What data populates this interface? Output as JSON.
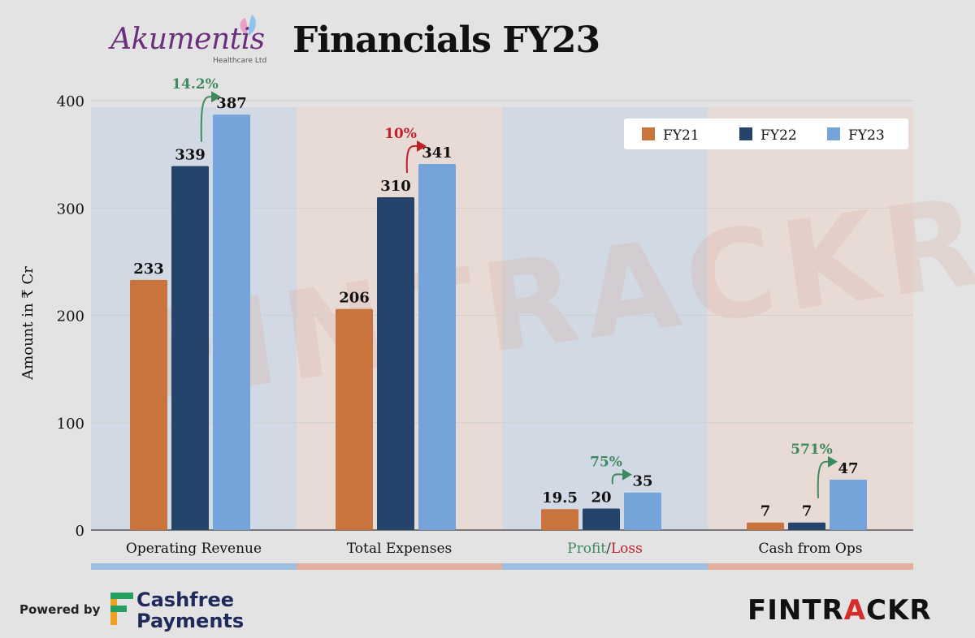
{
  "header": {
    "logo_text": "Akumentis",
    "logo_subtext": "Healthcare Ltd",
    "title": "Financials FY23"
  },
  "footer": {
    "powered_by": "Powered by",
    "sponsor_line1": "Cashfree",
    "sponsor_line2": "Payments",
    "brand_part1": "FINTR",
    "brand_part2": "A",
    "brand_part3": "CKR"
  },
  "watermark": "FINTRACKR",
  "colors": {
    "FY21": "#c8743c",
    "FY22": "#24446c",
    "FY23": "#74a4da",
    "growth_positive": "#3e8a5e",
    "growth_negative": "#c0202a",
    "band_blue": "#c3d4e6",
    "band_peach": "#ecd6cc"
  },
  "chart_data": {
    "type": "bar",
    "ylabel": "Amount in ₹ Cr",
    "ylim": [
      0,
      400
    ],
    "yticks": [
      0,
      100,
      200,
      300,
      400
    ],
    "legend_position": "top-right",
    "categories": [
      "Operating Revenue",
      "Total Expenses",
      "Profit/Loss",
      "Cash from Ops"
    ],
    "series": [
      {
        "name": "FY21",
        "values": [
          233,
          206,
          19.5,
          7
        ],
        "labels": [
          "233",
          "206",
          "19.5",
          "7"
        ]
      },
      {
        "name": "FY22",
        "values": [
          339,
          310,
          20,
          7
        ],
        "labels": [
          "339",
          "310",
          "20",
          "7"
        ]
      },
      {
        "name": "FY23",
        "values": [
          387,
          341,
          35,
          47
        ],
        "labels": [
          "387",
          "341",
          "35",
          "47"
        ]
      }
    ],
    "growth": [
      {
        "category": "Operating Revenue",
        "label": "14.2%",
        "direction": "up"
      },
      {
        "category": "Total Expenses",
        "label": "10%",
        "direction": "negative"
      },
      {
        "category": "Profit/Loss",
        "label": "75%",
        "direction": "up"
      },
      {
        "category": "Cash from Ops",
        "label": "571%",
        "direction": "up"
      }
    ],
    "profit_label_parts": [
      "Profit",
      "/",
      "Loss"
    ]
  }
}
